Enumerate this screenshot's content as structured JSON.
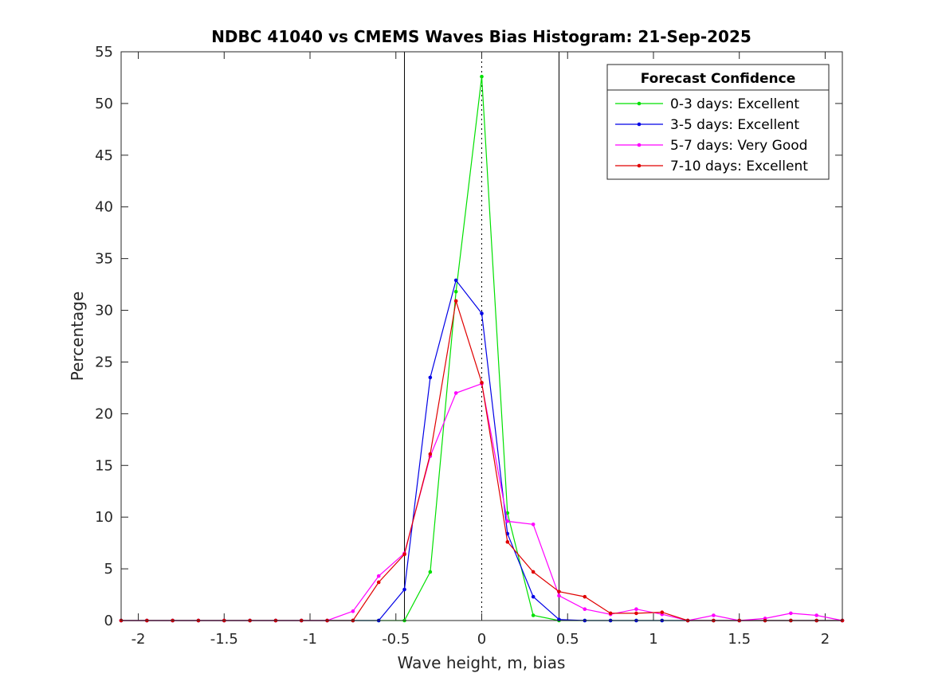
{
  "chart_data": {
    "type": "line",
    "title": "NDBC 41040 vs CMEMS Waves Bias Histogram: 21-Sep-2025",
    "xlabel": "Wave height, m, bias",
    "ylabel": "Percentage",
    "xlim": [
      -2.1,
      2.1
    ],
    "ylim": [
      0,
      55
    ],
    "xticks": [
      -2,
      -1.5,
      -1,
      -0.5,
      0,
      0.5,
      1,
      1.5,
      2
    ],
    "xtick_labels": [
      "-2",
      "-1.5",
      "-1",
      "-0.5",
      "0",
      "0.5",
      "1",
      "1.5",
      "2"
    ],
    "yticks": [
      0,
      5,
      10,
      15,
      20,
      25,
      30,
      35,
      40,
      45,
      50,
      55
    ],
    "ytick_labels": [
      "0",
      "5",
      "10",
      "15",
      "20",
      "25",
      "30",
      "35",
      "40",
      "45",
      "50",
      "55"
    ],
    "reference_lines": {
      "solid_x": [
        -0.45,
        0.45
      ],
      "dotted_x": [
        0
      ]
    },
    "legend": {
      "title": "Forecast Confidence",
      "location": "top-right"
    },
    "x": [
      -2.1,
      -1.95,
      -1.8,
      -1.65,
      -1.5,
      -1.35,
      -1.2,
      -1.05,
      -0.9,
      -0.75,
      -0.6,
      -0.45,
      -0.3,
      -0.15,
      0,
      0.15,
      0.3,
      0.45,
      0.6,
      0.75,
      0.9,
      1.05,
      1.2,
      1.35,
      1.5,
      1.65,
      1.8,
      1.95,
      2.1
    ],
    "series": [
      {
        "name": "0-3 days: Excellent",
        "color": "#00e000",
        "values": [
          0,
          0,
          0,
          0,
          0,
          0,
          0,
          0,
          0,
          0,
          0,
          0,
          4.7,
          31.8,
          52.6,
          10.4,
          0.5,
          0,
          0,
          0,
          0,
          0,
          0,
          0,
          0,
          0,
          0,
          0,
          0
        ]
      },
      {
        "name": "3-5 days: Excellent",
        "color": "#0000e6",
        "values": [
          0,
          0,
          0,
          0,
          0,
          0,
          0,
          0,
          0,
          0,
          0,
          3.0,
          23.5,
          32.9,
          29.7,
          8.4,
          2.3,
          0.1,
          0,
          0,
          0,
          0,
          0,
          0,
          0,
          0,
          0,
          0,
          0
        ]
      },
      {
        "name": "5-7 days: Very Good",
        "color": "#ff00ff",
        "values": [
          0,
          0,
          0,
          0,
          0,
          0,
          0,
          0,
          0,
          0.9,
          4.3,
          6.5,
          15.9,
          22.0,
          22.9,
          9.6,
          9.3,
          2.4,
          1.1,
          0.6,
          1.1,
          0.6,
          0,
          0.5,
          0,
          0.2,
          0.7,
          0.5,
          0
        ]
      },
      {
        "name": "7-10 days: Excellent",
        "color": "#e00000",
        "values": [
          0,
          0,
          0,
          0,
          0,
          0,
          0,
          0,
          0,
          0,
          3.7,
          6.4,
          16.1,
          30.9,
          23.0,
          7.6,
          4.7,
          2.8,
          2.3,
          0.7,
          0.7,
          0.8,
          0,
          0,
          0,
          0,
          0,
          0,
          0
        ]
      }
    ]
  }
}
